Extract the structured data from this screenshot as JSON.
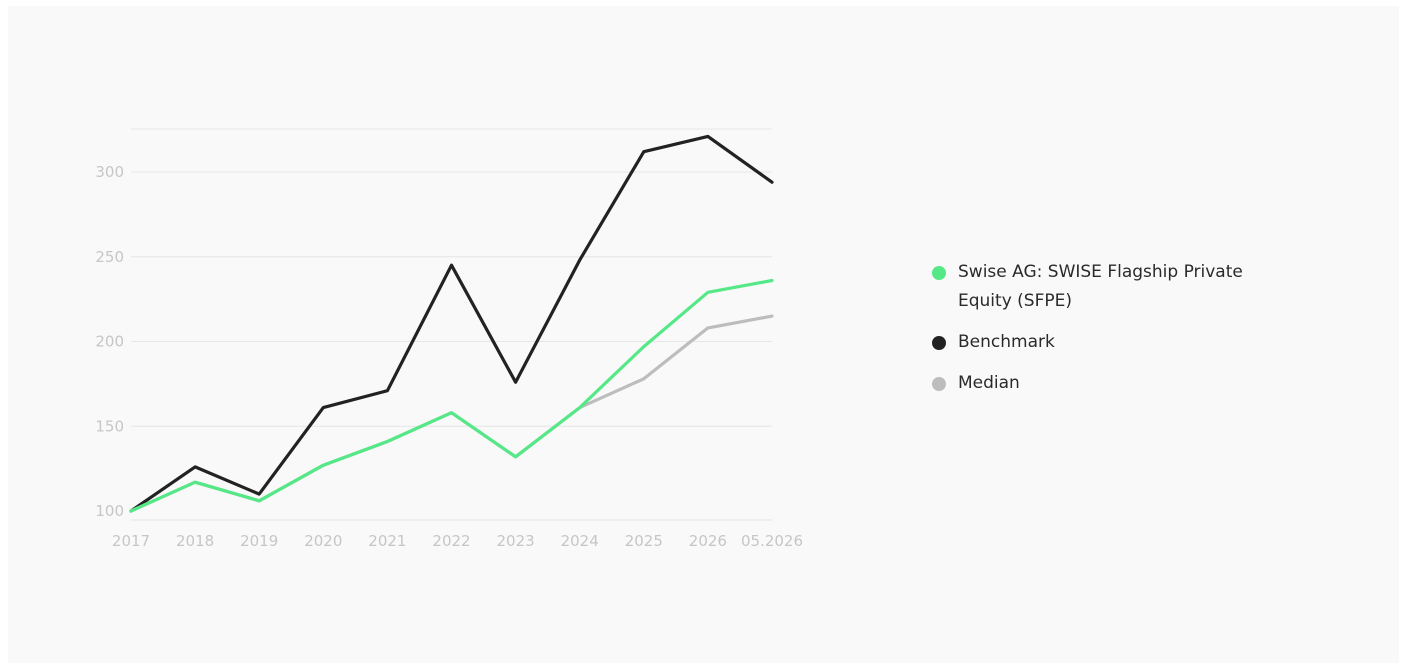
{
  "chart_data": {
    "type": "line",
    "title": "",
    "xlabel": "",
    "ylabel": "",
    "categories": [
      "2017",
      "2018",
      "2019",
      "2020",
      "2021",
      "2022",
      "2023",
      "2024",
      "2025",
      "2026",
      "05.2026"
    ],
    "yticks": [
      "100",
      "150",
      "200",
      "250",
      "300"
    ],
    "ylim": [
      95,
      325
    ],
    "grid": true,
    "legend_position": "right",
    "series": [
      {
        "key": "benchmark",
        "name": "Benchmark",
        "color": "#222222",
        "values": [
          100,
          126,
          110,
          161,
          171,
          245,
          176,
          248,
          312,
          321,
          294
        ]
      },
      {
        "key": "median",
        "name": "Median",
        "color": "#bdbdbd",
        "values": [
          100,
          117,
          106,
          127,
          141,
          158,
          132,
          161,
          178,
          208,
          215
        ]
      },
      {
        "key": "sfpe",
        "name": "Swise AG: SWISE Flagship Private Equity (SFPE)",
        "color": "#55e887",
        "values": [
          100,
          117,
          106,
          127,
          141,
          158,
          132,
          161,
          197,
          229,
          236
        ]
      }
    ]
  },
  "legend": {
    "items": [
      {
        "label": "Swise AG: SWISE Flagship Private Equity (SFPE)",
        "color": "#55e887"
      },
      {
        "label": "Benchmark",
        "color": "#222222"
      },
      {
        "label": "Median",
        "color": "#bdbdbd"
      }
    ]
  }
}
